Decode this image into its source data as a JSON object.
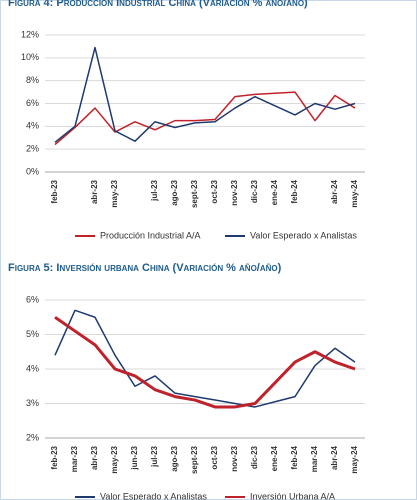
{
  "chart_data": [
    {
      "type": "line",
      "title": "Figura 4: Producción Industrial China (Variación % año/año)",
      "categories": [
        "feb-23",
        null,
        "abr-23",
        "may-23",
        null,
        "jul-23",
        "ago-23",
        "sept-23",
        "oct-23",
        "nov-23",
        "dic-23",
        "ene-24",
        "feb-24",
        null,
        "abr-24",
        "may-24"
      ],
      "series": [
        {
          "name": "Producción Industrial A/A",
          "color": "#c0222b",
          "width": 1.5,
          "values": [
            2.4,
            3.9,
            5.6,
            3.5,
            4.4,
            3.7,
            4.5,
            4.5,
            4.6,
            6.6,
            6.8,
            6.9,
            7.0,
            4.5,
            6.7,
            5.6
          ]
        },
        {
          "name": "Valor Esperado x Analistas",
          "color": "#1f3a6e",
          "width": 1.5,
          "values": [
            2.6,
            4.0,
            10.9,
            3.6,
            2.7,
            4.4,
            3.9,
            4.3,
            4.4,
            5.6,
            6.6,
            5.8,
            5.0,
            6.0,
            5.5,
            6.0
          ]
        }
      ],
      "ylim": [
        0,
        12
      ],
      "yticks": [
        {
          "value": 0,
          "label": "0%"
        },
        {
          "value": 2,
          "label": "2%"
        },
        {
          "value": 4,
          "label": "4%"
        },
        {
          "value": 6,
          "label": "6%"
        },
        {
          "value": 8,
          "label": "8%"
        },
        {
          "value": 10,
          "label": "10%"
        },
        {
          "value": 12,
          "label": "12%"
        }
      ],
      "grid": true
    },
    {
      "type": "line",
      "title": "Figura 5: Inversión urbana China (Variación % año/año)",
      "categories": [
        "feb-23",
        "mar-23",
        "abr-23",
        "may-23",
        "jun-23",
        "jul-23",
        "ago-23",
        "sept-23",
        "oct-23",
        "nov-23",
        "dic-23",
        "ene-24",
        "feb-24",
        "mar-24",
        "abr-24",
        "may-24"
      ],
      "series": [
        {
          "name": "Valor Esperado x Analistas",
          "color": "#1f3a6e",
          "width": 1.5,
          "values": [
            4.4,
            5.7,
            5.5,
            4.4,
            3.5,
            3.8,
            3.3,
            3.2,
            3.1,
            3.0,
            2.9,
            3.05,
            3.2,
            4.1,
            4.6,
            4.2
          ]
        },
        {
          "name": "Inversión Urbana A/A",
          "color": "#c0222b",
          "width": 3,
          "values": [
            5.5,
            5.1,
            4.7,
            4.0,
            3.8,
            3.4,
            3.2,
            3.1,
            2.9,
            2.9,
            3.0,
            3.6,
            4.2,
            4.5,
            4.2,
            4.0
          ]
        }
      ],
      "ylim": [
        2,
        6
      ],
      "yticks": [
        {
          "value": 2,
          "label": "2%"
        },
        {
          "value": 3,
          "label": "3%"
        },
        {
          "value": 4,
          "label": "4%"
        },
        {
          "value": 5,
          "label": "5%"
        },
        {
          "value": 6,
          "label": "6%"
        }
      ],
      "grid": true
    }
  ]
}
